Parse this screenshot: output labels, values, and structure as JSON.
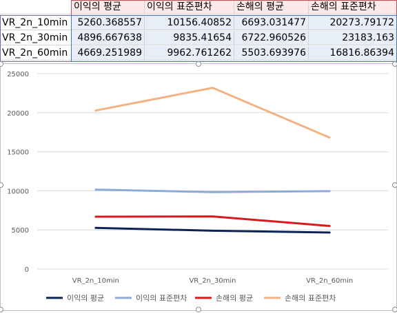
{
  "sheet": {
    "headers": [
      "이익의 평균",
      "이익의 표준편차",
      "손해의 평균",
      "손해의 표준편차"
    ],
    "rows": [
      {
        "label": "VR_2n_10min",
        "values": [
          "5260.368557",
          "10156.40852",
          "6693.031477",
          "20273.79172"
        ]
      },
      {
        "label": "VR_2n_30min",
        "values": [
          "4896.667638",
          "9835.41654",
          "6722.960526",
          "23183.163"
        ]
      },
      {
        "label": "VR_2n_60min",
        "values": [
          "4669.251989",
          "9962.761262",
          "5503.693976",
          "16816.86394"
        ]
      }
    ]
  },
  "colors": {
    "series1": "#0b2454",
    "series2": "#8eaad7",
    "series3": "#d7191c",
    "series4": "#f4b183",
    "header_fill": "#fde9e9",
    "number_fill": "#e8eef8"
  },
  "chart_data": {
    "type": "line",
    "categories": [
      "VR_2n_10min",
      "VR_2n_30min",
      "VR_2n_60min"
    ],
    "ylim": [
      0,
      25000
    ],
    "yticks": [
      "0",
      "5000",
      "10000",
      "15000",
      "20000",
      "25000"
    ],
    "grid": true,
    "legend": "bottom",
    "series": [
      {
        "name": "이익의 평균",
        "values": [
          5260.37,
          4896.67,
          4669.25
        ]
      },
      {
        "name": "이익의 표준편차",
        "values": [
          10156.41,
          9835.42,
          9962.76
        ]
      },
      {
        "name": "손해의 평균",
        "values": [
          6693.03,
          6722.96,
          5503.69
        ]
      },
      {
        "name": "손해의 표준편차",
        "values": [
          20273.79,
          23183.16,
          16816.86
        ]
      }
    ]
  }
}
